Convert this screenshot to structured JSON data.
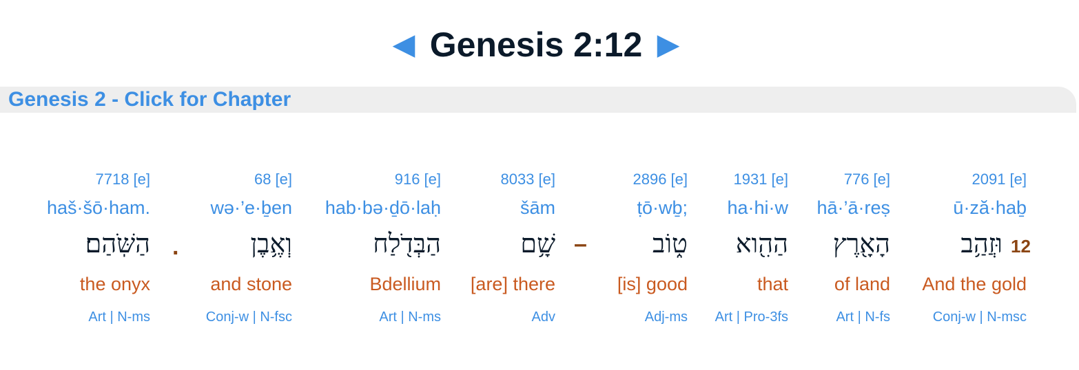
{
  "header": {
    "title": "Genesis 2:12",
    "prev_icon": "left-triangle-icon",
    "next_icon": "right-triangle-icon",
    "prev_glyph": "◀",
    "next_glyph": "▶"
  },
  "chapter_link": "Genesis 2 - Click for Chapter",
  "verse_number": "12",
  "colors": {
    "link": "#3d8fe3",
    "english": "#c95a20",
    "verse_number": "#8b4513",
    "hebrew": "#0b1a2a"
  },
  "words": [
    {
      "strong": "2091 [e]",
      "translit": "ū·ză·haḇ",
      "hebrew": "וּזֲהַ֥ב",
      "english": "And the gold",
      "grammar": "Conj-w | N-msc"
    },
    {
      "strong": "776 [e]",
      "translit": "hā·’ā·reṣ",
      "hebrew": "הָאָ֖רֶץ",
      "english": "of land",
      "grammar": "Art | N-fs"
    },
    {
      "strong": "1931 [e]",
      "translit": "ha·hi·w",
      "hebrew": "הַהִ֖וא",
      "english": "that",
      "grammar": "Art | Pro-3fs"
    },
    {
      "strong": "2896 [e]",
      "translit": "ṭō·wḇ;",
      "hebrew": "ט֑וֹב",
      "english": "[is] good",
      "grammar": "Adj-ms"
    },
    {
      "strong": "8033 [e]",
      "translit": "šām",
      "hebrew": "שָׁ֥ם",
      "english": "[are] there",
      "grammar": "Adv"
    },
    {
      "strong": "916 [e]",
      "translit": "hab·bə·ḏō·laḥ",
      "hebrew": "הַבְּדֹ֖לַח",
      "english": "Bdellium",
      "grammar": "Art | N-ms"
    },
    {
      "strong": "68 [e]",
      "translit": "wə·’e·ḇen",
      "hebrew": "וְאֶ֥בֶן",
      "english": "and stone",
      "grammar": "Conj-w | N-fsc"
    },
    {
      "strong": "7718 [e]",
      "translit": "haš·šō·ham.",
      "hebrew": "הַשֹּֽׁהַם׃",
      "english": "the onyx",
      "grammar": "Art | N-ms"
    }
  ],
  "separators": {
    "dash": "–",
    "period": "."
  }
}
